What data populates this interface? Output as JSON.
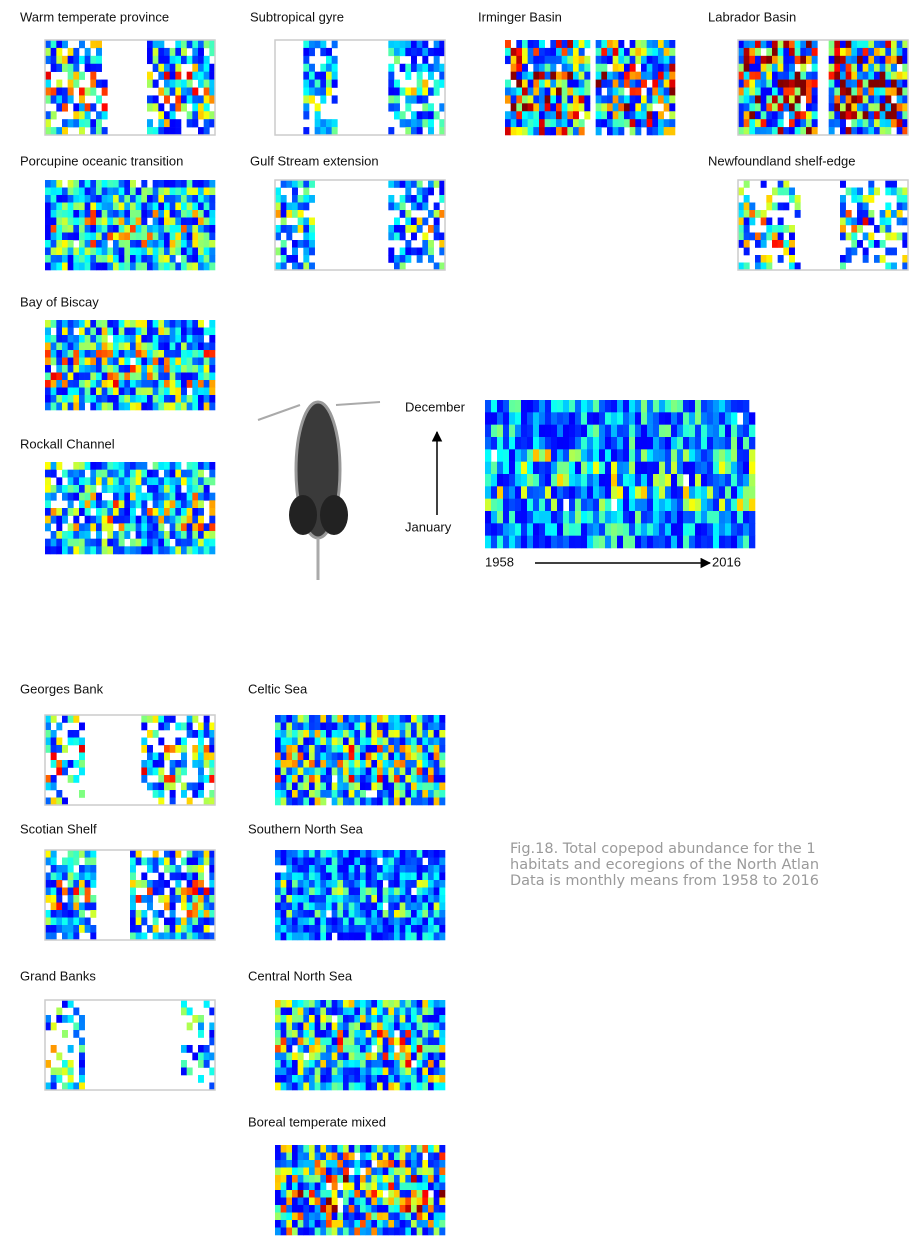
{
  "panels": [
    {
      "title": "Warm temperate province"
    },
    {
      "title": "Subtropical gyre"
    },
    {
      "title": "Irminger Basin"
    },
    {
      "title": "Labrador Basin"
    },
    {
      "title": "Porcupine oceanic transition"
    },
    {
      "title": "Gulf Stream extension"
    },
    {
      "title": "Newfoundland shelf-edge"
    },
    {
      "title": "Bay of Biscay"
    },
    {
      "title": "Rockall Channel"
    },
    {
      "title": "Georges Bank"
    },
    {
      "title": "Celtic Sea"
    },
    {
      "title": "Scotian Shelf"
    },
    {
      "title": "Southern North Sea"
    },
    {
      "title": "Grand Banks"
    },
    {
      "title": "Central North Sea"
    },
    {
      "title": "Boreal temperate mixed"
    }
  ],
  "key": {
    "y_top": "December",
    "y_bottom": "January",
    "x_start": "1958",
    "x_end": "2016"
  },
  "caption": [
    "Fig.18. Total copepod abundance for the 1",
    "habitats and ecoregions of the North Atlan",
    "Data is monthly means from 1958 to 2016"
  ]
}
